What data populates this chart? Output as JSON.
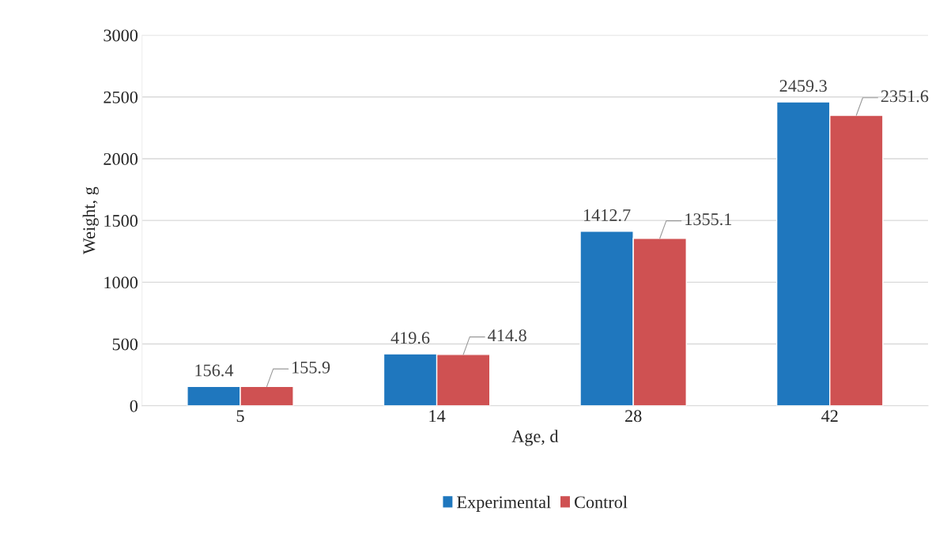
{
  "chart_data": {
    "type": "bar",
    "xlabel": "Age, d",
    "ylabel": "Weight, g",
    "categories": [
      "5",
      "14",
      "28",
      "42"
    ],
    "series": [
      {
        "name": "Experimental",
        "color": "#1f77be",
        "values": [
          156.4,
          419.6,
          1412.7,
          2459.3
        ]
      },
      {
        "name": "Control",
        "color": "#cf5152",
        "values": [
          155.9,
          414.8,
          1355.1,
          2351.6
        ]
      }
    ],
    "ylim": [
      0,
      3000
    ],
    "yticks": [
      0,
      500,
      1000,
      1500,
      2000,
      2500,
      3000
    ],
    "grid": "y",
    "legend": "bottom",
    "data_labels": true
  }
}
